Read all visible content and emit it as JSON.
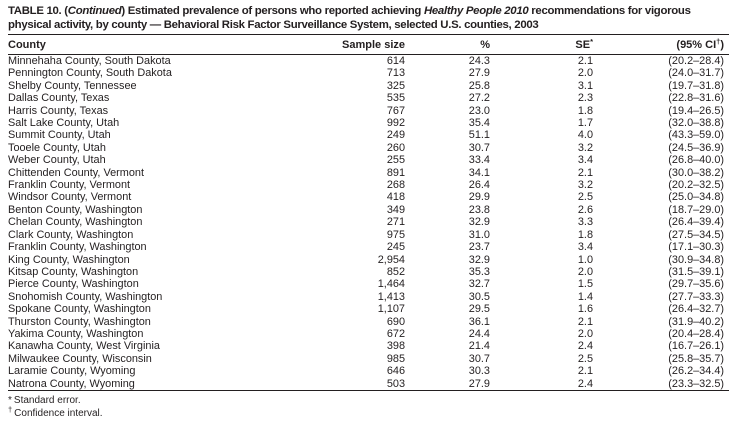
{
  "table": {
    "title": {
      "segments": [
        {
          "text": "TABLE 10. ("
        },
        {
          "text": "Continued",
          "italic": true
        },
        {
          "text": ") Estimated prevalence of persons who reported achieving "
        },
        {
          "text": "Healthy People 2010",
          "italic": true
        },
        {
          "text": " recommendations for vigorous physical activity, by county — Behavioral Risk Factor Surveillance System, selected U.S. counties, 2003"
        }
      ]
    },
    "columns": [
      {
        "label": "County"
      },
      {
        "label": "Sample size"
      },
      {
        "label": "%"
      },
      {
        "label": "SE",
        "sup": "*"
      },
      {
        "label": "(95% CI",
        "sup": "†",
        "suffix": ")"
      }
    ],
    "rows": [
      {
        "county": "Minnehaha County, South Dakota",
        "sample": "614",
        "pct": "24.3",
        "se": "2.1",
        "ci": "(20.2–28.4)"
      },
      {
        "county": "Pennington County, South Dakota",
        "sample": "713",
        "pct": "27.9",
        "se": "2.0",
        "ci": "(24.0–31.7)"
      },
      {
        "county": "Shelby County, Tennessee",
        "sample": "325",
        "pct": "25.8",
        "se": "3.1",
        "ci": "(19.7–31.8)"
      },
      {
        "county": "Dallas County, Texas",
        "sample": "535",
        "pct": "27.2",
        "se": "2.3",
        "ci": "(22.8–31.6)"
      },
      {
        "county": "Harris County, Texas",
        "sample": "767",
        "pct": "23.0",
        "se": "1.8",
        "ci": "(19.4–26.5)"
      },
      {
        "county": "Salt Lake County, Utah",
        "sample": "992",
        "pct": "35.4",
        "se": "1.7",
        "ci": "(32.0–38.8)"
      },
      {
        "county": "Summit County, Utah",
        "sample": "249",
        "pct": "51.1",
        "se": "4.0",
        "ci": "(43.3–59.0)"
      },
      {
        "county": "Tooele County, Utah",
        "sample": "260",
        "pct": "30.7",
        "se": "3.2",
        "ci": "(24.5–36.9)"
      },
      {
        "county": "Weber County, Utah",
        "sample": "255",
        "pct": "33.4",
        "se": "3.4",
        "ci": "(26.8–40.0)"
      },
      {
        "county": "Chittenden County, Vermont",
        "sample": "891",
        "pct": "34.1",
        "se": "2.1",
        "ci": "(30.0–38.2)"
      },
      {
        "county": "Franklin County, Vermont",
        "sample": "268",
        "pct": "26.4",
        "se": "3.2",
        "ci": "(20.2–32.5)"
      },
      {
        "county": "Windsor County, Vermont",
        "sample": "418",
        "pct": "29.9",
        "se": "2.5",
        "ci": "(25.0–34.8)"
      },
      {
        "county": "Benton County, Washington",
        "sample": "349",
        "pct": "23.8",
        "se": "2.6",
        "ci": "(18.7–29.0)"
      },
      {
        "county": "Chelan County, Washington",
        "sample": "271",
        "pct": "32.9",
        "se": "3.3",
        "ci": "(26.4–39.4)"
      },
      {
        "county": "Clark County, Washington",
        "sample": "975",
        "pct": "31.0",
        "se": "1.8",
        "ci": "(27.5–34.5)"
      },
      {
        "county": "Franklin County, Washington",
        "sample": "245",
        "pct": "23.7",
        "se": "3.4",
        "ci": "(17.1–30.3)"
      },
      {
        "county": "King County, Washington",
        "sample": "2,954",
        "pct": "32.9",
        "se": "1.0",
        "ci": "(30.9–34.8)"
      },
      {
        "county": "Kitsap County, Washington",
        "sample": "852",
        "pct": "35.3",
        "se": "2.0",
        "ci": "(31.5–39.1)"
      },
      {
        "county": "Pierce County, Washington",
        "sample": "1,464",
        "pct": "32.7",
        "se": "1.5",
        "ci": "(29.7–35.6)"
      },
      {
        "county": "Snohomish County, Washington",
        "sample": "1,413",
        "pct": "30.5",
        "se": "1.4",
        "ci": "(27.7–33.3)"
      },
      {
        "county": "Spokane County, Washington",
        "sample": "1,107",
        "pct": "29.5",
        "se": "1.6",
        "ci": "(26.4–32.7)"
      },
      {
        "county": "Thurston County, Washington",
        "sample": "690",
        "pct": "36.1",
        "se": "2.1",
        "ci": "(31.9–40.2)"
      },
      {
        "county": "Yakima County, Washington",
        "sample": "672",
        "pct": "24.4",
        "se": "2.0",
        "ci": "(20.4–28.4)"
      },
      {
        "county": "Kanawha County, West Virginia",
        "sample": "398",
        "pct": "21.4",
        "se": "2.4",
        "ci": "(16.7–26.1)"
      },
      {
        "county": "Milwaukee County, Wisconsin",
        "sample": "985",
        "pct": "30.7",
        "se": "2.5",
        "ci": "(25.8–35.7)"
      },
      {
        "county": "Laramie County, Wyoming",
        "sample": "646",
        "pct": "30.3",
        "se": "2.1",
        "ci": "(26.2–34.4)"
      },
      {
        "county": "Natrona County, Wyoming",
        "sample": "503",
        "pct": "27.9",
        "se": "2.4",
        "ci": "(23.3–32.5)"
      }
    ],
    "footnotes": [
      {
        "marker": "*",
        "superscript": false,
        "text": "Standard error."
      },
      {
        "marker": "†",
        "superscript": true,
        "text": "Confidence interval."
      }
    ]
  }
}
